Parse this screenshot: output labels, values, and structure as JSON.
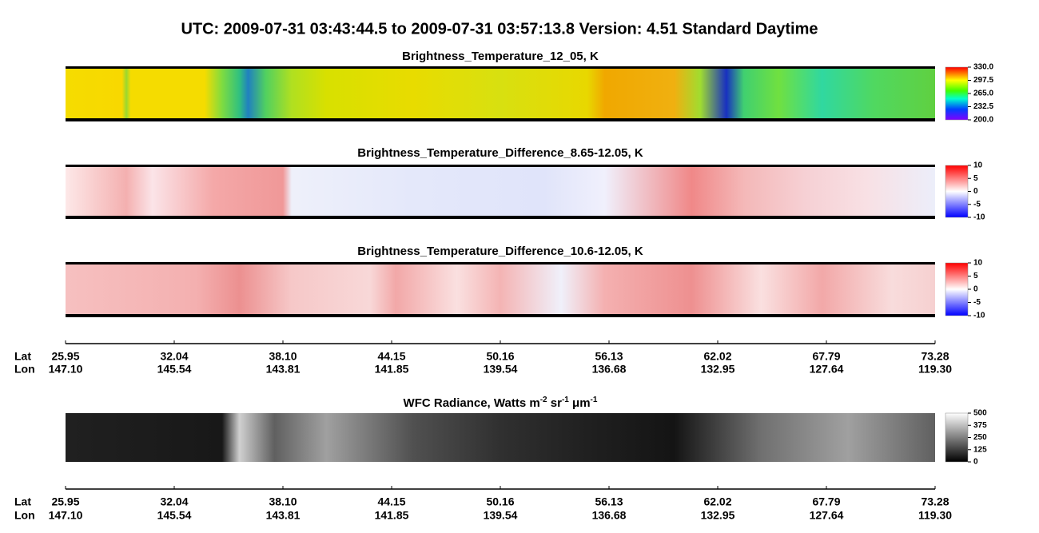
{
  "title": "UTC:  2009-07-31   03:43:44.5  to  2009-07-31   03:57:13.8    Version: 4.51  Standard Daytime",
  "panels": [
    {
      "title": "Brightness_Temperature_12_05, K",
      "colorbar": {
        "lim": [
          200,
          330
        ],
        "ticks": [
          {
            "value": 330,
            "label": "330.0"
          },
          297.5,
          {
            "value": 265,
            "label": "265.0"
          },
          232.5,
          {
            "value": 200,
            "label": "200.0"
          }
        ]
      }
    },
    {
      "title": "Brightness_Temperature_Difference_8.65-12.05, K",
      "colorbar": {
        "lim": [
          -10,
          10
        ],
        "ticks": [
          10,
          5,
          0,
          -5,
          -10
        ]
      }
    },
    {
      "title": "Brightness_Temperature_Difference_10.6-12.05, K",
      "colorbar": {
        "lim": [
          -10,
          10
        ],
        "ticks": [
          10,
          5,
          0,
          -5,
          -10
        ]
      }
    },
    {
      "title": [
        "WFC Radiance, Watts m",
        "-2",
        " sr",
        "-1",
        " μm",
        "-1"
      ],
      "colorbar": {
        "lim": [
          0,
          500
        ],
        "ticks": [
          500,
          375,
          250,
          125,
          0
        ]
      }
    }
  ],
  "axis": {
    "lat_label": "Lat",
    "lon_label": "Lon",
    "lat": [
      25.95,
      32.04,
      {
        "value": 38.1,
        "label": "38.10"
      },
      44.15,
      50.16,
      56.13,
      62.02,
      67.79,
      73.28
    ],
    "lon": [
      {
        "value": 147.1,
        "label": "147.10"
      },
      145.54,
      143.81,
      141.85,
      139.54,
      136.68,
      132.95,
      127.64,
      {
        "value": 119.3,
        "label": "119.30"
      }
    ]
  }
}
